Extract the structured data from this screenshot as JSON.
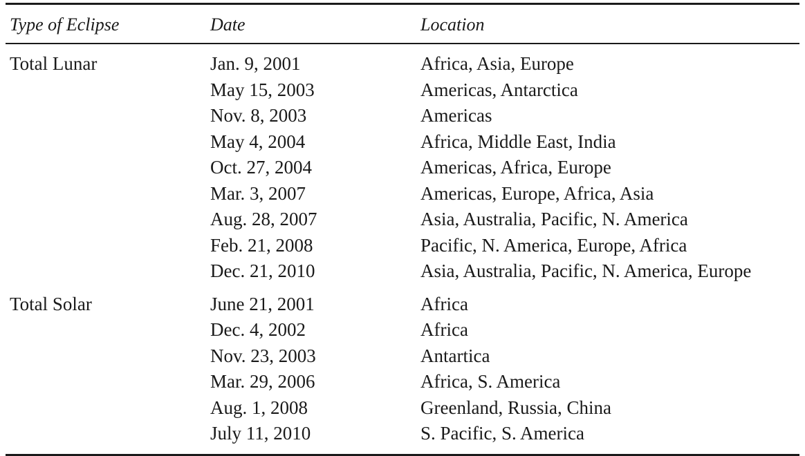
{
  "headers": {
    "type": "Type of Eclipse",
    "date": "Date",
    "location": "Location"
  },
  "groups": [
    {
      "type": "Total Lunar",
      "rows": [
        {
          "date": "Jan. 9, 2001",
          "location": "Africa, Asia, Europe"
        },
        {
          "date": "May 15, 2003",
          "location": "Americas, Antarctica"
        },
        {
          "date": "Nov. 8, 2003",
          "location": "Americas"
        },
        {
          "date": "May 4, 2004",
          "location": "Africa, Middle East, India"
        },
        {
          "date": "Oct. 27, 2004",
          "location": "Americas, Africa, Europe"
        },
        {
          "date": "Mar. 3, 2007",
          "location": "Americas, Europe, Africa, Asia"
        },
        {
          "date": "Aug. 28, 2007",
          "location": "Asia, Australia, Pacific, N. America"
        },
        {
          "date": "Feb. 21, 2008",
          "location": "Pacific, N. America, Europe, Africa"
        },
        {
          "date": "Dec. 21, 2010",
          "location": "Asia, Australia, Pacific, N. America, Europe"
        }
      ]
    },
    {
      "type": "Total Solar",
      "rows": [
        {
          "date": "June 21, 2001",
          "location": "Africa"
        },
        {
          "date": "Dec. 4, 2002",
          "location": "Africa"
        },
        {
          "date": "Nov. 23, 2003",
          "location": "Antartica"
        },
        {
          "date": "Mar. 29, 2006",
          "location": "Africa, S. America"
        },
        {
          "date": "Aug. 1, 2008",
          "location": "Greenland, Russia, China"
        },
        {
          "date": "July 11, 2010",
          "location": "S. Pacific, S. America"
        }
      ]
    }
  ]
}
